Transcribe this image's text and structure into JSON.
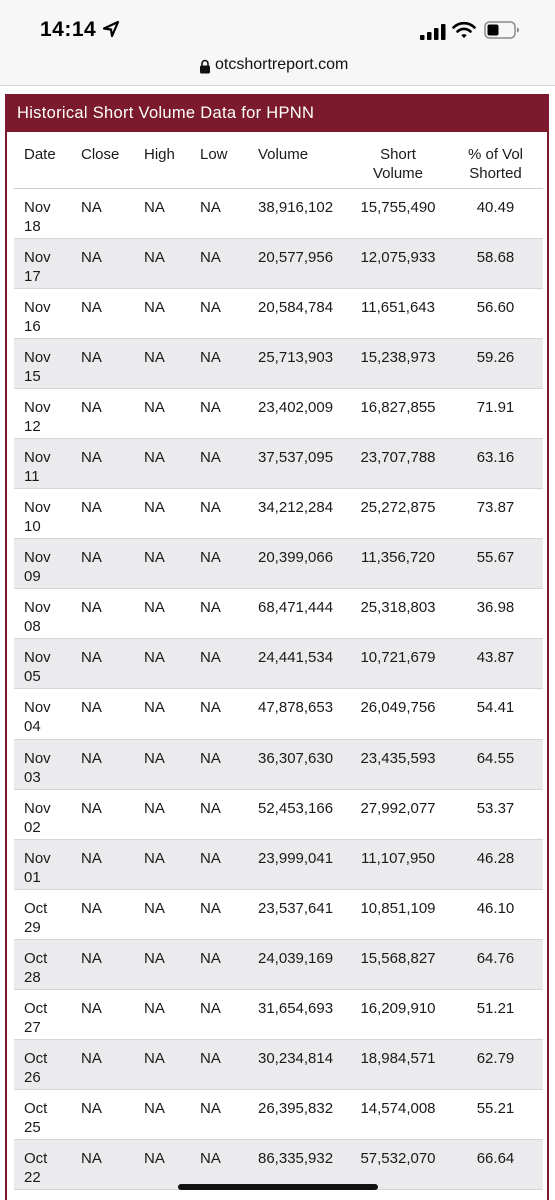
{
  "status_bar": {
    "time": "14:14",
    "icons": [
      "location-arrow-icon",
      "cellular-signal-icon",
      "wifi-icon",
      "battery-icon"
    ]
  },
  "browser": {
    "url": "otcshortreport.com",
    "secure_icon": "lock-icon"
  },
  "colors": {
    "header_background": "#7a1a2c",
    "row_stripe": "#ebebed"
  },
  "table": {
    "title": "Historical Short Volume Data for HPNN",
    "columns": {
      "date": "Date",
      "close": "Close",
      "high": "High",
      "low": "Low",
      "volume": "Volume",
      "short_volume_line1": "Short",
      "short_volume_line2": "Volume",
      "pct_line1": "% of Vol",
      "pct_line2": "Shorted"
    },
    "rows": [
      {
        "month": "Nov",
        "day": "18",
        "close": "NA",
        "high": "NA",
        "low": "NA",
        "volume": "38,916,102",
        "short_volume": "15,755,490",
        "pct_shorted": "40.49"
      },
      {
        "month": "Nov",
        "day": "17",
        "close": "NA",
        "high": "NA",
        "low": "NA",
        "volume": "20,577,956",
        "short_volume": "12,075,933",
        "pct_shorted": "58.68"
      },
      {
        "month": "Nov",
        "day": "16",
        "close": "NA",
        "high": "NA",
        "low": "NA",
        "volume": "20,584,784",
        "short_volume": "11,651,643",
        "pct_shorted": "56.60"
      },
      {
        "month": "Nov",
        "day": "15",
        "close": "NA",
        "high": "NA",
        "low": "NA",
        "volume": "25,713,903",
        "short_volume": "15,238,973",
        "pct_shorted": "59.26"
      },
      {
        "month": "Nov",
        "day": "12",
        "close": "NA",
        "high": "NA",
        "low": "NA",
        "volume": "23,402,009",
        "short_volume": "16,827,855",
        "pct_shorted": "71.91"
      },
      {
        "month": "Nov",
        "day": "11",
        "close": "NA",
        "high": "NA",
        "low": "NA",
        "volume": "37,537,095",
        "short_volume": "23,707,788",
        "pct_shorted": "63.16"
      },
      {
        "month": "Nov",
        "day": "10",
        "close": "NA",
        "high": "NA",
        "low": "NA",
        "volume": "34,212,284",
        "short_volume": "25,272,875",
        "pct_shorted": "73.87"
      },
      {
        "month": "Nov",
        "day": "09",
        "close": "NA",
        "high": "NA",
        "low": "NA",
        "volume": "20,399,066",
        "short_volume": "11,356,720",
        "pct_shorted": "55.67"
      },
      {
        "month": "Nov",
        "day": "08",
        "close": "NA",
        "high": "NA",
        "low": "NA",
        "volume": "68,471,444",
        "short_volume": "25,318,803",
        "pct_shorted": "36.98"
      },
      {
        "month": "Nov",
        "day": "05",
        "close": "NA",
        "high": "NA",
        "low": "NA",
        "volume": "24,441,534",
        "short_volume": "10,721,679",
        "pct_shorted": "43.87"
      },
      {
        "month": "Nov",
        "day": "04",
        "close": "NA",
        "high": "NA",
        "low": "NA",
        "volume": "47,878,653",
        "short_volume": "26,049,756",
        "pct_shorted": "54.41"
      },
      {
        "month": "Nov",
        "day": "03",
        "close": "NA",
        "high": "NA",
        "low": "NA",
        "volume": "36,307,630",
        "short_volume": "23,435,593",
        "pct_shorted": "64.55"
      },
      {
        "month": "Nov",
        "day": "02",
        "close": "NA",
        "high": "NA",
        "low": "NA",
        "volume": "52,453,166",
        "short_volume": "27,992,077",
        "pct_shorted": "53.37"
      },
      {
        "month": "Nov",
        "day": "01",
        "close": "NA",
        "high": "NA",
        "low": "NA",
        "volume": "23,999,041",
        "short_volume": "11,107,950",
        "pct_shorted": "46.28"
      },
      {
        "month": "Oct",
        "day": "29",
        "close": "NA",
        "high": "NA",
        "low": "NA",
        "volume": "23,537,641",
        "short_volume": "10,851,109",
        "pct_shorted": "46.10"
      },
      {
        "month": "Oct",
        "day": "28",
        "close": "NA",
        "high": "NA",
        "low": "NA",
        "volume": "24,039,169",
        "short_volume": "15,568,827",
        "pct_shorted": "64.76"
      },
      {
        "month": "Oct",
        "day": "27",
        "close": "NA",
        "high": "NA",
        "low": "NA",
        "volume": "31,654,693",
        "short_volume": "16,209,910",
        "pct_shorted": "51.21"
      },
      {
        "month": "Oct",
        "day": "26",
        "close": "NA",
        "high": "NA",
        "low": "NA",
        "volume": "30,234,814",
        "short_volume": "18,984,571",
        "pct_shorted": "62.79"
      },
      {
        "month": "Oct",
        "day": "25",
        "close": "NA",
        "high": "NA",
        "low": "NA",
        "volume": "26,395,832",
        "short_volume": "14,574,008",
        "pct_shorted": "55.21"
      },
      {
        "month": "Oct",
        "day": "22",
        "close": "NA",
        "high": "NA",
        "low": "NA",
        "volume": "86,335,932",
        "short_volume": "57,532,070",
        "pct_shorted": "66.64"
      }
    ]
  }
}
